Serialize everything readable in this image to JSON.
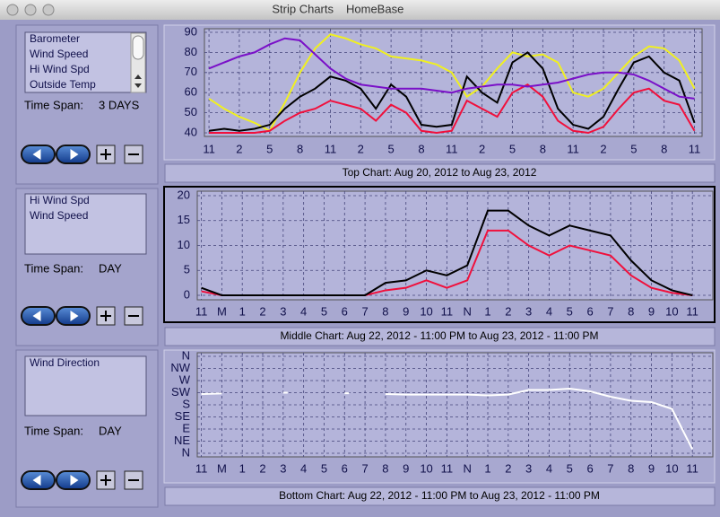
{
  "window": {
    "title": "Strip Charts",
    "subtitle": "HomeBase"
  },
  "panels": [
    {
      "time_span_label": "Time Span:",
      "time_span": "3 DAYS"
    },
    {
      "time_span_label": "Time Span:",
      "time_span": "DAY"
    },
    {
      "time_span_label": "Time Span:",
      "time_span": "DAY"
    }
  ],
  "chart_data": [
    {
      "type": "line",
      "caption": "Top Chart:  Aug 20, 2012  to  Aug 23, 2012",
      "grid": true,
      "x": [
        0,
        0.5,
        1,
        1.5,
        2,
        2.5,
        3,
        3.5,
        4,
        4.5,
        5,
        5.5,
        6,
        6.5,
        7,
        7.5,
        8,
        8.5,
        9,
        9.5,
        10,
        10.5,
        11,
        11.5,
        12,
        12.5,
        13,
        13.5,
        14,
        14.5,
        15,
        15.5,
        16
      ],
      "xlim": [
        -0.15,
        16.25
      ],
      "xticks": [
        {
          "value": 0,
          "label": "11"
        },
        {
          "value": 1,
          "label": "2"
        },
        {
          "value": 2,
          "label": "5"
        },
        {
          "value": 3,
          "label": "8"
        },
        {
          "value": 4,
          "label": "11"
        },
        {
          "value": 5,
          "label": "2"
        },
        {
          "value": 6,
          "label": "5"
        },
        {
          "value": 7,
          "label": "8"
        },
        {
          "value": 8,
          "label": "11"
        },
        {
          "value": 9,
          "label": "2"
        },
        {
          "value": 10,
          "label": "5"
        },
        {
          "value": 11,
          "label": "8"
        },
        {
          "value": 12,
          "label": "11"
        },
        {
          "value": 13,
          "label": "2"
        },
        {
          "value": 14,
          "label": "5"
        },
        {
          "value": 15,
          "label": "8"
        },
        {
          "value": 16,
          "label": "11"
        }
      ],
      "ylim": [
        40,
        90
      ],
      "yticks": [
        40,
        50,
        60,
        70,
        80,
        90
      ],
      "series": [
        {
          "name": "Barometer",
          "color": "#7a10c8",
          "values": [
            72,
            75,
            78,
            80,
            84,
            87,
            86,
            79,
            72,
            67,
            64,
            63,
            62,
            62,
            62,
            61,
            60,
            62,
            63,
            64,
            64,
            63,
            64,
            65,
            67,
            69,
            70,
            70,
            69,
            66,
            62,
            58,
            57
          ]
        },
        {
          "name": "Wind Speed",
          "color": "#f0103c",
          "values": [
            40,
            40,
            40,
            40,
            41,
            46,
            50,
            52,
            56,
            54,
            52,
            46,
            54,
            50,
            41,
            40,
            41,
            56,
            52,
            48,
            60,
            64,
            58,
            46,
            41,
            40,
            43,
            52,
            60,
            62,
            56,
            54,
            41
          ]
        },
        {
          "name": "Hi Wind Spd",
          "color": "#000000",
          "values": [
            41,
            42,
            41,
            42,
            44,
            52,
            58,
            62,
            68,
            66,
            62,
            52,
            64,
            58,
            44,
            43,
            44,
            68,
            60,
            55,
            75,
            80,
            72,
            52,
            44,
            42,
            48,
            62,
            75,
            78,
            70,
            66,
            45
          ]
        },
        {
          "name": "Outside Temp",
          "color": "#f0f020",
          "values": [
            57,
            52,
            48,
            45,
            41,
            55,
            70,
            82,
            89,
            87,
            84,
            82,
            78,
            77,
            76,
            74,
            70,
            58,
            63,
            72,
            80,
            78,
            79,
            75,
            60,
            58,
            62,
            70,
            78,
            83,
            82,
            76,
            62
          ]
        }
      ]
    },
    {
      "type": "line",
      "caption": "Middle Chart:  Aug 22, 2012 - 11:00 PM  to  Aug 23, 2012 - 11:00 PM",
      "grid": true,
      "x": [
        0,
        1,
        2,
        3,
        4,
        5,
        6,
        7,
        8,
        9,
        10,
        11,
        12,
        13,
        14,
        15,
        16,
        17,
        18,
        19,
        20,
        21,
        22,
        23,
        24
      ],
      "xlim": [
        -0.2,
        25
      ],
      "xticks": [
        {
          "value": 0,
          "label": "11"
        },
        {
          "value": 1,
          "label": "M"
        },
        {
          "value": 2,
          "label": "1"
        },
        {
          "value": 3,
          "label": "2"
        },
        {
          "value": 4,
          "label": "3"
        },
        {
          "value": 5,
          "label": "4"
        },
        {
          "value": 6,
          "label": "5"
        },
        {
          "value": 7,
          "label": "6"
        },
        {
          "value": 8,
          "label": "7"
        },
        {
          "value": 9,
          "label": "8"
        },
        {
          "value": 10,
          "label": "9"
        },
        {
          "value": 11,
          "label": "10"
        },
        {
          "value": 12,
          "label": "11"
        },
        {
          "value": 13,
          "label": "N"
        },
        {
          "value": 14,
          "label": "1"
        },
        {
          "value": 15,
          "label": "2"
        },
        {
          "value": 16,
          "label": "3"
        },
        {
          "value": 17,
          "label": "4"
        },
        {
          "value": 18,
          "label": "5"
        },
        {
          "value": 19,
          "label": "6"
        },
        {
          "value": 20,
          "label": "7"
        },
        {
          "value": 21,
          "label": "8"
        },
        {
          "value": 22,
          "label": "9"
        },
        {
          "value": 23,
          "label": "10"
        },
        {
          "value": 24,
          "label": "11"
        }
      ],
      "ylim": [
        0,
        20
      ],
      "yticks": [
        0,
        5,
        10,
        15,
        20
      ],
      "series": [
        {
          "name": "Hi Wind Spd",
          "color": "#000000",
          "values": [
            1.5,
            0,
            0,
            0,
            0,
            0,
            0,
            0,
            0,
            2.5,
            3,
            5,
            4,
            6,
            17,
            17,
            14,
            12,
            14,
            13,
            12,
            7,
            3,
            1,
            0
          ]
        },
        {
          "name": "Wind Speed",
          "color": "#f0103c",
          "values": [
            0.8,
            0,
            0,
            0,
            0,
            0,
            0,
            0,
            0,
            1,
            1.5,
            3,
            1.5,
            3,
            13,
            13,
            10,
            8,
            10,
            9,
            8,
            4,
            1.5,
            0.5,
            0
          ]
        }
      ]
    },
    {
      "type": "line",
      "caption": "Bottom Chart:  Aug 22, 2012 - 11:00 PM  to  Aug 23, 2012 - 11:00 PM",
      "grid": true,
      "x": [
        0,
        1,
        2,
        3,
        4,
        5,
        6,
        7,
        8,
        9,
        10,
        11,
        12,
        13,
        14,
        15,
        16,
        17,
        18,
        19,
        20,
        21,
        22,
        23,
        24
      ],
      "xlim": [
        -0.2,
        25
      ],
      "xticks": [
        {
          "value": 0,
          "label": "11"
        },
        {
          "value": 1,
          "label": "M"
        },
        {
          "value": 2,
          "label": "1"
        },
        {
          "value": 3,
          "label": "2"
        },
        {
          "value": 4,
          "label": "3"
        },
        {
          "value": 5,
          "label": "4"
        },
        {
          "value": 6,
          "label": "5"
        },
        {
          "value": 7,
          "label": "6"
        },
        {
          "value": 8,
          "label": "7"
        },
        {
          "value": 9,
          "label": "8"
        },
        {
          "value": 10,
          "label": "9"
        },
        {
          "value": 11,
          "label": "10"
        },
        {
          "value": 12,
          "label": "11"
        },
        {
          "value": 13,
          "label": "N"
        },
        {
          "value": 14,
          "label": "1"
        },
        {
          "value": 15,
          "label": "2"
        },
        {
          "value": 16,
          "label": "3"
        },
        {
          "value": 17,
          "label": "4"
        },
        {
          "value": 18,
          "label": "5"
        },
        {
          "value": 19,
          "label": "6"
        },
        {
          "value": 20,
          "label": "7"
        },
        {
          "value": 21,
          "label": "8"
        },
        {
          "value": 22,
          "label": "9"
        },
        {
          "value": 23,
          "label": "10"
        },
        {
          "value": 24,
          "label": "11"
        }
      ],
      "ylim": [
        0,
        360
      ],
      "yticks": [
        {
          "value": 360,
          "label": "N"
        },
        {
          "value": 315,
          "label": "NW"
        },
        {
          "value": 270,
          "label": "W"
        },
        {
          "value": 225,
          "label": "SW"
        },
        {
          "value": 180,
          "label": "S"
        },
        {
          "value": 135,
          "label": "SE"
        },
        {
          "value": 90,
          "label": "E"
        },
        {
          "value": 45,
          "label": "NE"
        },
        {
          "value": 0,
          "label": "N"
        }
      ],
      "series": [
        {
          "name": "Wind Direction",
          "color": "#ffffff",
          "values": [
            220,
            222,
            null,
            null,
            225,
            null,
            null,
            223,
            null,
            220,
            218,
            218,
            218,
            218,
            215,
            218,
            235,
            235,
            240,
            230,
            210,
            195,
            190,
            165,
            15
          ]
        }
      ]
    }
  ]
}
